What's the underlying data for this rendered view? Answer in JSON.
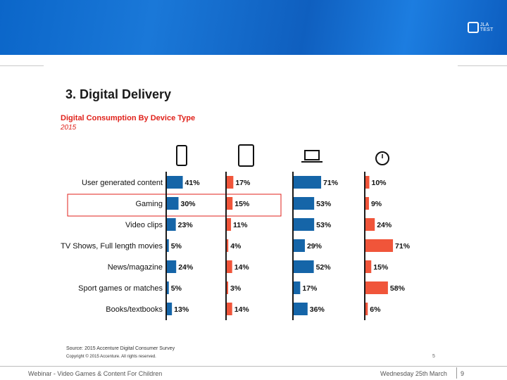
{
  "header": {
    "logo_text": "JLA TEST"
  },
  "slide": {
    "title": "3. Digital Delivery",
    "subtitle": "Digital Consumption By Device Type",
    "year": "2015",
    "source": "Source: 2015 Accenture Digital Consumer Survey",
    "copyright": "Copyright © 2015 Accenture. All rights reserved.",
    "inner_page": "5"
  },
  "footer": {
    "left": "Webinar - Video Games & Content For Children",
    "date": "Wednesday 25th March",
    "page": "9"
  },
  "colors": {
    "blue": "#1565a8",
    "red": "#f0553a",
    "highlight": "#e0221b",
    "axis": "#1a1a1a"
  },
  "chart_data": {
    "type": "bar",
    "title": "Digital Consumption By Device Type",
    "subtitle": "2015",
    "categories": [
      "User generated content",
      "Gaming",
      "Video clips",
      "TV Shows, Full length movies",
      "News/magazine",
      "Sport games or matches",
      "Books/textbooks"
    ],
    "highlighted_category": "Gaming",
    "series": [
      {
        "name": "smartphone",
        "icon": "smartphone-icon",
        "color": "#1565a8",
        "values": [
          41,
          30,
          23,
          5,
          24,
          5,
          13
        ]
      },
      {
        "name": "tablet",
        "icon": "tablet-icon",
        "color": "#f0553a",
        "values": [
          17,
          15,
          11,
          4,
          14,
          3,
          14
        ]
      },
      {
        "name": "laptop",
        "icon": "laptop-icon",
        "color": "#1565a8",
        "values": [
          71,
          53,
          53,
          29,
          52,
          17,
          36
        ]
      },
      {
        "name": "smartwatch",
        "icon": "smartwatch-icon",
        "color": "#f0553a",
        "values": [
          10,
          9,
          24,
          71,
          15,
          58,
          6
        ]
      }
    ],
    "value_suffix": "%",
    "xlim": [
      0,
      100
    ]
  }
}
